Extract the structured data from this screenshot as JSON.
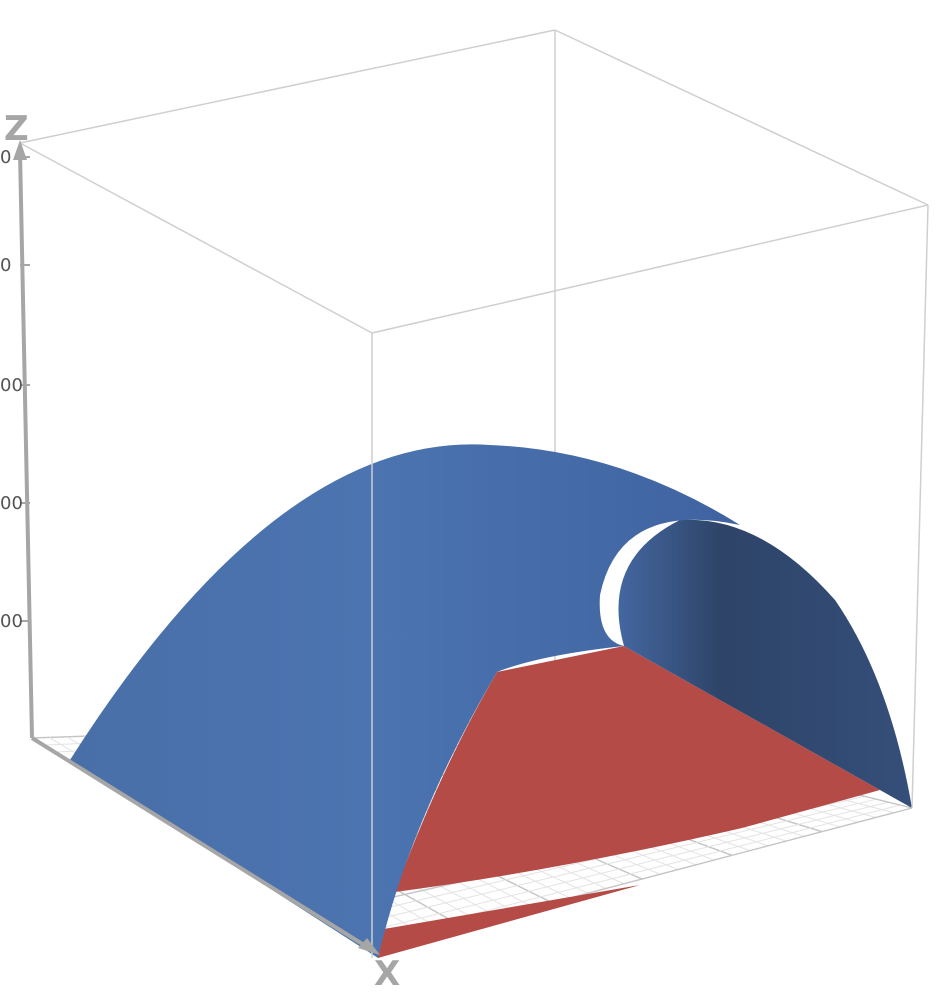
{
  "chart_data": {
    "type": "surface3d",
    "axes": {
      "z_label": "Z",
      "x_label": "X",
      "z_tick_labels": [
        "0",
        "0",
        "00",
        "00",
        "00"
      ]
    },
    "series": [
      {
        "color": "#4a72ad",
        "shape": "paraboloid cap"
      },
      {
        "color": "#b34a45",
        "shape": "plane"
      }
    ],
    "grid": "floor grid on",
    "box": true
  }
}
